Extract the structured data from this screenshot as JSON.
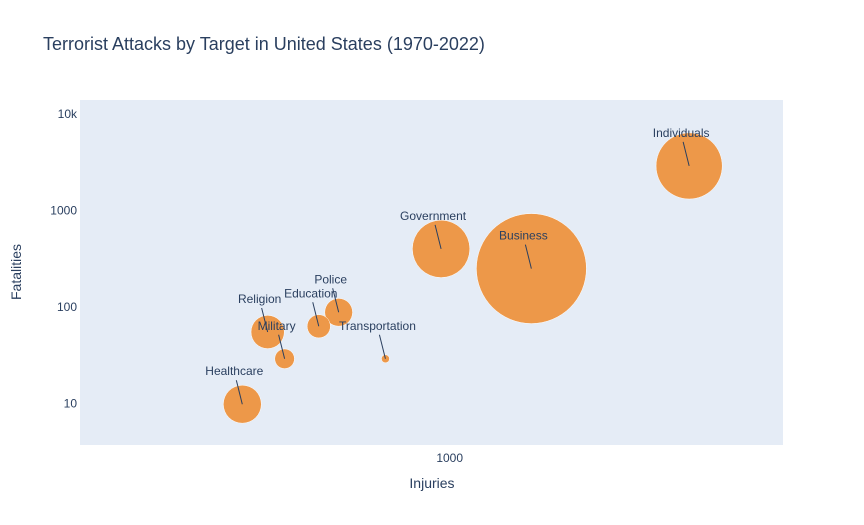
{
  "chart_data": {
    "type": "scatter",
    "title": "Terrorist Attacks by Target in United States (1970-2022)",
    "xlabel": "Injuries",
    "ylabel": "Fatalities",
    "x_scale": "log",
    "y_scale": "log",
    "xlim": [
      70,
      11000
    ],
    "ylim": [
      3.7,
      14000
    ],
    "x_ticks": [
      {
        "value": 1000,
        "label": "1000"
      }
    ],
    "y_ticks": [
      {
        "value": 10,
        "label": "10"
      },
      {
        "value": 100,
        "label": "100"
      },
      {
        "value": 1000,
        "label": "1000"
      },
      {
        "value": 10000,
        "label": "10k"
      }
    ],
    "grid": false,
    "legend": "none",
    "colors": {
      "marker": "#ee8a2a",
      "marker_line": "#ffffff",
      "plot_bg": "#e5ecf6",
      "text": "#2a3f5f"
    },
    "points": [
      {
        "label": "Individuals",
        "injuries": 5600,
        "fatalities": 2900,
        "size_value": 1700
      },
      {
        "label": "Government",
        "injuries": 940,
        "fatalities": 400,
        "size_value": 1280
      },
      {
        "label": "Business",
        "injuries": 1800,
        "fatalities": 250,
        "size_value": 4700
      },
      {
        "label": "Police",
        "injuries": 450,
        "fatalities": 88,
        "size_value": 300
      },
      {
        "label": "Education",
        "injuries": 390,
        "fatalities": 63,
        "size_value": 210
      },
      {
        "label": "Religion",
        "injuries": 270,
        "fatalities": 55,
        "size_value": 430
      },
      {
        "label": "Military",
        "injuries": 305,
        "fatalities": 29,
        "size_value": 150
      },
      {
        "label": "Transportation",
        "injuries": 630,
        "fatalities": 29,
        "size_value": 25
      },
      {
        "label": "Healthcare",
        "injuries": 225,
        "fatalities": 9.8,
        "size_value": 560
      }
    ]
  }
}
